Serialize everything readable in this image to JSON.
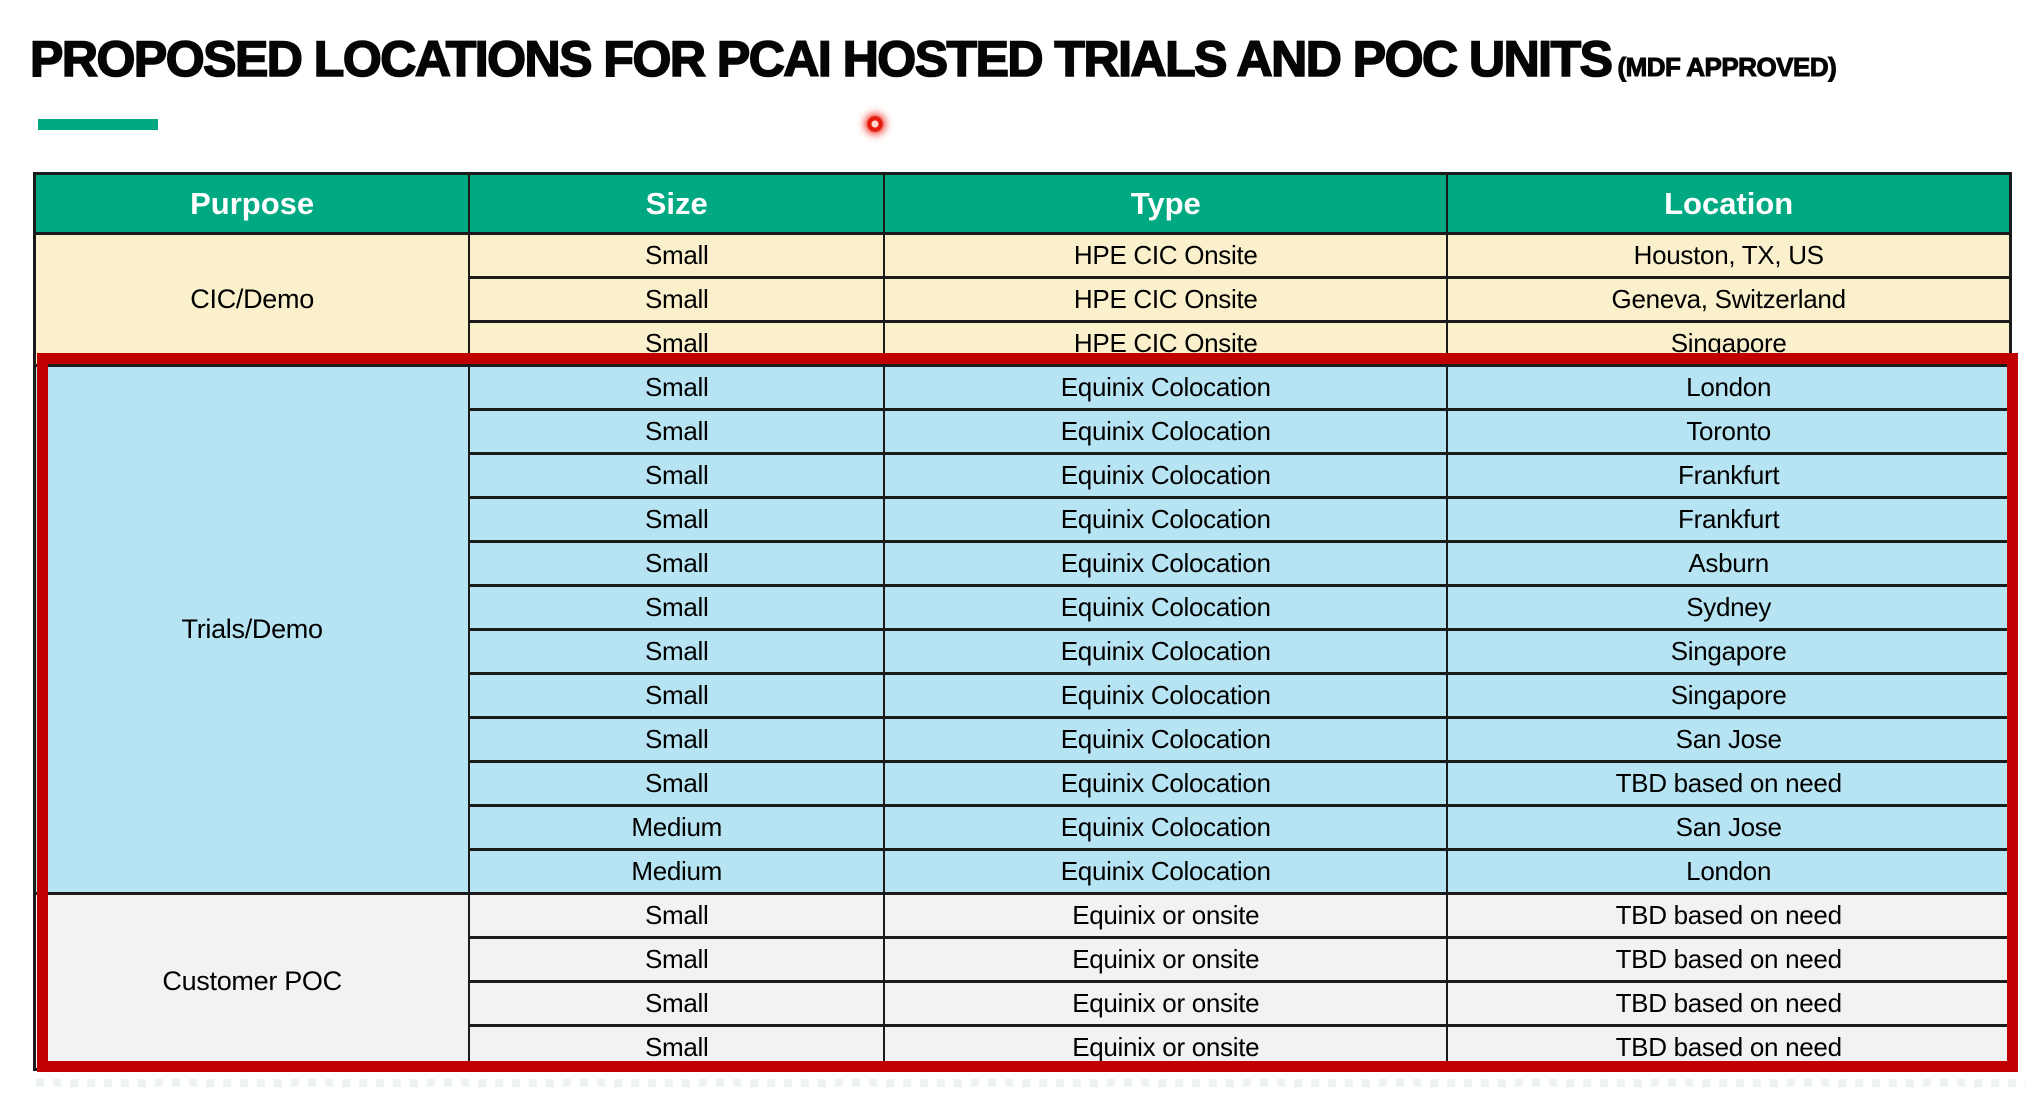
{
  "title": {
    "main": "PROPOSED LOCATIONS FOR PCAI HOSTED TRIALS AND POC UNITS",
    "suffix": "(MDF APPROVED)"
  },
  "accent": {
    "underline_color": "#01A982",
    "laser_pointer_color": "#E31B0C",
    "highlight_box_color": "#C00000",
    "grid_border_color": "#1B1B1B"
  },
  "table": {
    "header_bg": "#01A982",
    "header_text_color": "#FFFFFF",
    "headers": [
      "Purpose",
      "Size",
      "Type",
      "Location"
    ],
    "column_widths_pct": [
      22,
      21,
      28.5,
      28.5
    ],
    "sections": [
      {
        "purpose": "CIC/Demo",
        "bg": "#FAF0CC",
        "highlighted": false,
        "rows": [
          [
            "Small",
            "HPE CIC Onsite",
            "Houston, TX, US"
          ],
          [
            "Small",
            "HPE CIC Onsite",
            "Geneva, Switzerland"
          ],
          [
            "Small",
            "HPE CIC Onsite",
            "Singapore"
          ]
        ]
      },
      {
        "purpose": "Trials/Demo",
        "bg": "#B7E4F2",
        "highlighted": true,
        "rows": [
          [
            "Small",
            "Equinix Colocation",
            "London"
          ],
          [
            "Small",
            "Equinix Colocation",
            "Toronto"
          ],
          [
            "Small",
            "Equinix Colocation",
            "Frankfurt"
          ],
          [
            "Small",
            "Equinix Colocation",
            "Frankfurt"
          ],
          [
            "Small",
            "Equinix Colocation",
            "Asburn"
          ],
          [
            "Small",
            "Equinix Colocation",
            "Sydney"
          ],
          [
            "Small",
            "Equinix Colocation",
            "Singapore"
          ],
          [
            "Small",
            "Equinix Colocation",
            "Singapore"
          ],
          [
            "Small",
            "Equinix Colocation",
            "San Jose"
          ],
          [
            "Small",
            "Equinix Colocation",
            "TBD based on need"
          ],
          [
            "Medium",
            "Equinix Colocation",
            "San Jose"
          ],
          [
            "Medium",
            "Equinix Colocation",
            "London"
          ]
        ]
      },
      {
        "purpose": "Customer POC",
        "bg": "#F2F2F2",
        "highlighted": true,
        "rows": [
          [
            "Small",
            "Equinix or onsite",
            "TBD based on need"
          ],
          [
            "Small",
            "Equinix or onsite",
            "TBD based on need"
          ],
          [
            "Small",
            "Equinix or onsite",
            "TBD based on need"
          ],
          [
            "Small",
            "Equinix or onsite",
            "TBD based on need"
          ]
        ]
      }
    ]
  }
}
